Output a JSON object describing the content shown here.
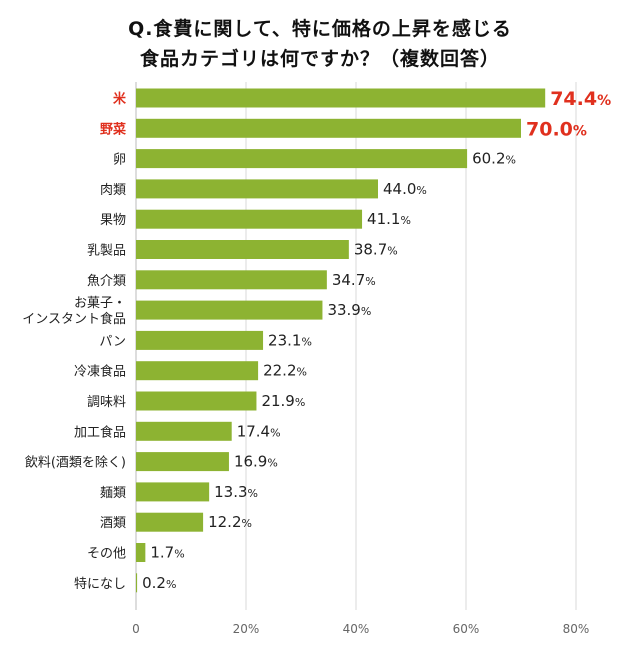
{
  "chart_data": {
    "type": "bar",
    "orientation": "horizontal",
    "title_lines": [
      "Q.食費に関して、特に価格の上昇を感じる",
      "食品カテゴリは何ですか？（複数回答）"
    ],
    "categories": [
      [
        "米"
      ],
      [
        "野菜"
      ],
      [
        "卵"
      ],
      [
        "肉類"
      ],
      [
        "果物"
      ],
      [
        "乳製品"
      ],
      [
        "魚介類"
      ],
      [
        "お菓子・",
        "インスタント食品"
      ],
      [
        "パン"
      ],
      [
        "冷凍食品"
      ],
      [
        "調味料"
      ],
      [
        "加工食品"
      ],
      [
        "飲料(酒類を除く)"
      ],
      [
        "麺類"
      ],
      [
        "酒類"
      ],
      [
        "その他"
      ],
      [
        "特になし"
      ]
    ],
    "values": [
      74.4,
      70.0,
      60.2,
      44.0,
      41.1,
      38.7,
      34.7,
      33.9,
      23.1,
      22.2,
      21.9,
      17.4,
      16.9,
      13.3,
      12.2,
      1.7,
      0.2
    ],
    "value_labels": [
      "74.4",
      "70.0",
      "60.2",
      "44.0",
      "41.1",
      "38.7",
      "34.7",
      "33.9",
      "23.1",
      "22.2",
      "21.9",
      "17.4",
      "16.9",
      "13.3",
      "12.2",
      "1.7",
      "0.2"
    ],
    "unit": "%",
    "highlight_count": 2,
    "xlim": [
      0,
      80
    ],
    "xticks": [
      "0",
      "20%",
      "40%",
      "60%",
      "80%"
    ],
    "grid": true,
    "colors": {
      "bar": "#8db332",
      "highlight": "#e0301e",
      "text": "#222222",
      "grid": "#d9d9d9",
      "tick": "#666666"
    }
  }
}
